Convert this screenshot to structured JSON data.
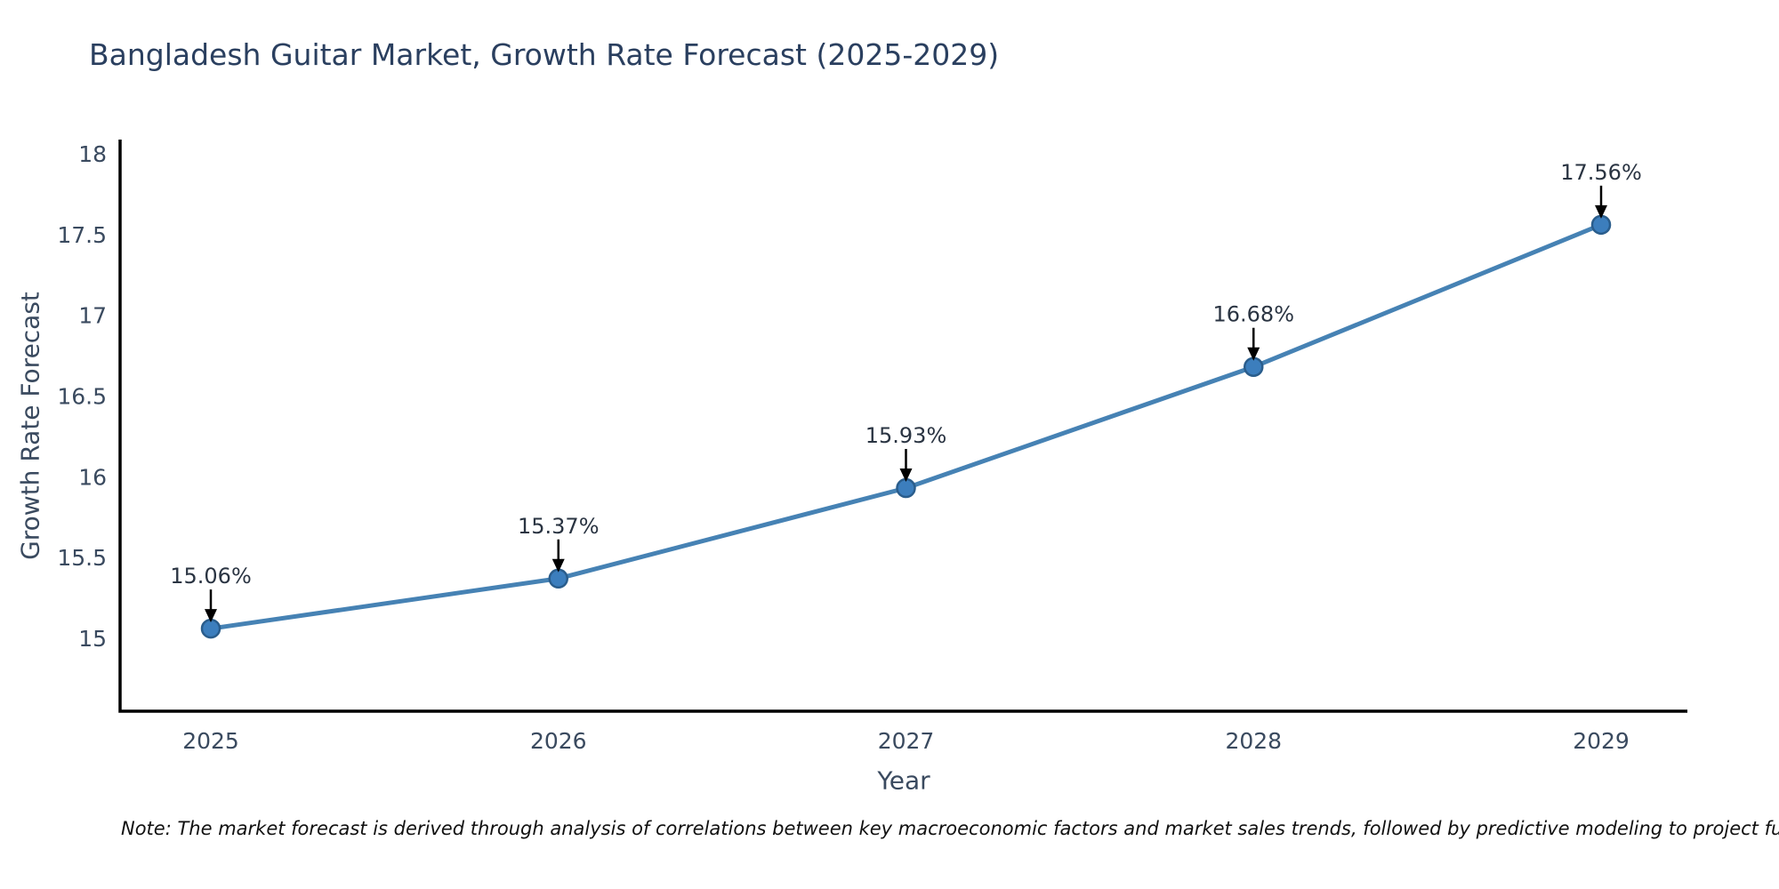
{
  "chart_data": {
    "type": "line",
    "title": "Bangladesh Guitar Market, Growth Rate Forecast (2025-2029)",
    "xlabel": "Year",
    "ylabel": "Growth Rate Forecast",
    "categories": [
      "2025",
      "2026",
      "2027",
      "2028",
      "2029"
    ],
    "series": [
      {
        "name": "Growth Rate Forecast",
        "values": [
          15.06,
          15.37,
          15.93,
          16.68,
          17.56
        ]
      }
    ],
    "point_labels": [
      "15.06%",
      "15.37%",
      "15.93%",
      "16.68%",
      "17.56%"
    ],
    "ytick_values": [
      15,
      15.5,
      16,
      16.5,
      17,
      17.5,
      18
    ],
    "ytick_labels": [
      "15",
      "15.5",
      "16",
      "16.5",
      "17",
      "17.5",
      "18"
    ],
    "ylim": [
      14.55,
      18.09
    ],
    "grid": false,
    "legend": "none",
    "annotation_style": "black-down-arrow",
    "colors": {
      "line": "#4682b4",
      "marker_fill": "#3c7ebd",
      "marker_edge": "#2a5d8c",
      "axis": "#000000",
      "title_text": "#2a3f5f",
      "tick_text": "#3a4a5f",
      "annotation_text": "#2a3442",
      "arrow": "#000000",
      "background": "#ffffff"
    }
  },
  "footnote": {
    "text": "Note: The market forecast is derived through analysis of correlations between key macroeconomic factors and market sales trends, followed by predictive modeling to project future sales."
  }
}
